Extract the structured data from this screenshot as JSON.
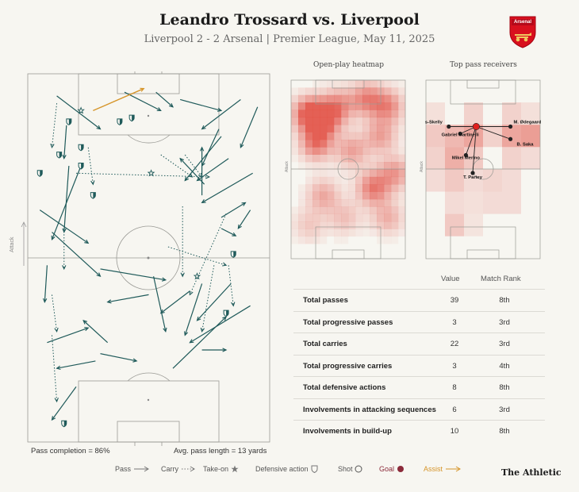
{
  "header": {
    "title": "Leandro Trossard vs. Liverpool",
    "subtitle": "Liverpool 2 - 2 Arsenal | Premier League, May 11, 2025",
    "crest_text": "Arsenal"
  },
  "pitch": {
    "attack_label": "Attack",
    "pass_completion": "Pass completion = 86%",
    "avg_pass_length": "Avg. pass length = 13 yards"
  },
  "heatmap": {
    "title": "Open-play heatmap",
    "attack_label": "Attack"
  },
  "receivers": {
    "title": "Top pass receivers",
    "attack_label": "Attack",
    "players": [
      "M. Lewis-Skelly",
      "M. Ødegaard",
      "Gabriel Martinelli",
      "B. Saka",
      "Mikel Merino",
      "T. Partey"
    ]
  },
  "stats": {
    "col_value": "Value",
    "col_rank": "Match Rank",
    "rows": [
      {
        "label": "Total passes",
        "value": "39",
        "rank": "8th"
      },
      {
        "label": "Total progressive passes",
        "value": "3",
        "rank": "3rd"
      },
      {
        "label": "Total carries",
        "value": "22",
        "rank": "3rd"
      },
      {
        "label": "Total progressive carries",
        "value": "3",
        "rank": "4th"
      },
      {
        "label": "Total defensive actions",
        "value": "8",
        "rank": "8th"
      },
      {
        "label": "Involvements in attacking sequences",
        "value": "6",
        "rank": "3rd"
      },
      {
        "label": "Involvements in build-up",
        "value": "10",
        "rank": "8th"
      }
    ]
  },
  "legend": {
    "pass": "Pass",
    "carry": "Carry",
    "takeon": "Take-on",
    "defensive": "Defensive action",
    "shot": "Shot",
    "goal": "Goal",
    "assist": "Assist"
  },
  "brand": "The Athletic",
  "colors": {
    "pass": "#1f5a5a",
    "assist": "#d6952a",
    "goal": "#8b2a3a",
    "heat": "#e0453a",
    "background": "#f7f6f1"
  },
  "chart_data": {
    "type": "scatter",
    "description_units": "pitch coordinates 0-100 (x: left-right, y: own goal 0 to opponent goal 100)",
    "passes": [
      [
        12,
        94,
        30,
        85
      ],
      [
        17,
        75,
        15,
        57
      ],
      [
        22,
        75,
        10,
        55
      ],
      [
        40,
        95,
        55,
        90
      ],
      [
        53,
        95,
        60,
        91
      ],
      [
        63,
        93,
        80,
        90
      ],
      [
        88,
        93,
        72,
        85
      ],
      [
        95,
        91,
        88,
        80
      ],
      [
        80,
        83,
        65,
        71
      ],
      [
        79,
        85,
        72,
        75
      ],
      [
        73,
        70,
        63,
        77
      ],
      [
        72,
        67,
        72,
        80
      ],
      [
        83,
        77,
        70,
        71
      ],
      [
        93,
        73,
        72,
        65
      ],
      [
        92,
        63,
        87,
        58
      ],
      [
        80,
        61,
        90,
        65
      ],
      [
        80,
        58,
        86,
        56
      ],
      [
        5,
        63,
        25,
        54
      ],
      [
        10,
        57,
        30,
        45
      ],
      [
        8,
        48,
        7,
        38
      ],
      [
        30,
        47,
        57,
        44
      ],
      [
        52,
        45,
        57,
        30
      ],
      [
        50,
        40,
        33,
        38
      ],
      [
        67,
        41,
        55,
        35
      ],
      [
        72,
        43,
        65,
        29
      ],
      [
        92,
        37,
        67,
        27
      ],
      [
        84,
        43,
        70,
        33
      ],
      [
        8,
        27,
        25,
        31
      ],
      [
        28,
        22,
        12,
        20
      ],
      [
        20,
        15,
        10,
        6
      ],
      [
        30,
        24,
        45,
        22
      ],
      [
        72,
        25,
        82,
        25
      ],
      [
        60,
        20,
        82,
        34
      ],
      [
        33,
        27,
        23,
        33
      ],
      [
        16,
        86,
        15,
        77
      ]
    ],
    "carries": [
      [
        12,
        92,
        10,
        80
      ],
      [
        25,
        80,
        27,
        70
      ],
      [
        20,
        73,
        75,
        72
      ],
      [
        55,
        78,
        68,
        72
      ],
      [
        65,
        78,
        72,
        72
      ],
      [
        64,
        64,
        64,
        45
      ],
      [
        82,
        62,
        67,
        40
      ],
      [
        58,
        53,
        82,
        48
      ],
      [
        83,
        48,
        85,
        37
      ],
      [
        10,
        29,
        12,
        11
      ],
      [
        77,
        48,
        72,
        30
      ],
      [
        15,
        58,
        15,
        47
      ],
      [
        10,
        40,
        12,
        30
      ]
    ],
    "assist": [
      [
        27,
        90,
        48,
        96
      ]
    ],
    "takeons": [
      [
        22,
        90
      ],
      [
        51,
        73
      ],
      [
        70,
        45
      ]
    ],
    "defensive": [
      [
        17,
        87
      ],
      [
        13,
        78
      ],
      [
        22,
        80
      ],
      [
        38,
        87
      ],
      [
        43,
        88
      ],
      [
        22,
        75
      ],
      [
        5,
        73
      ],
      [
        85,
        51
      ],
      [
        82,
        35
      ],
      [
        15,
        5
      ],
      [
        27,
        67
      ]
    ],
    "heatmap_grid": "16x24 open-play density (see script)",
    "receivers": {
      "origin": [
        44,
        74
      ],
      "targets": [
        [
          20,
          74
        ],
        [
          74,
          74
        ],
        [
          30,
          70
        ],
        [
          74,
          67
        ],
        [
          35,
          58
        ],
        [
          41,
          48
        ]
      ]
    }
  }
}
